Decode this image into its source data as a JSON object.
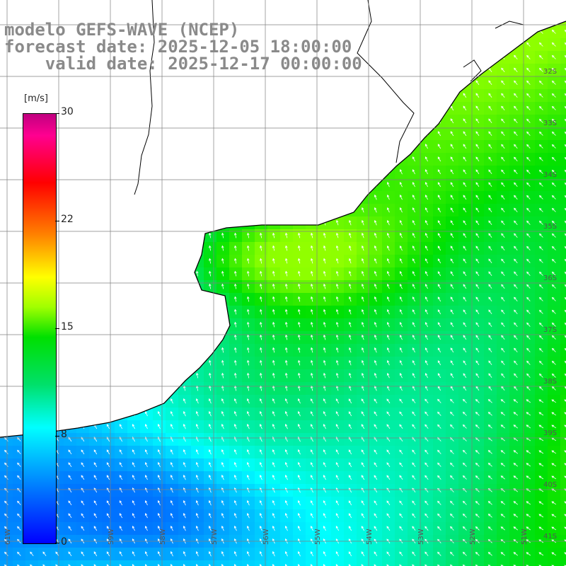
{
  "title": {
    "line1": "modelo GEFS-WAVE (NCEP)",
    "line2": "forecast date: 2025-12-05 18:00:00",
    "line3": "    valid date: 2025-12-17 00:00:00"
  },
  "colorbar": {
    "unit": "[m/s]",
    "ticks": [
      "30",
      "22",
      "15",
      "8",
      "0"
    ],
    "colors": [
      "#0000ff",
      "#00a0ff",
      "#00ffff",
      "#00e000",
      "#ffff00",
      "#ff8000",
      "#ff0000",
      "#c00080"
    ]
  },
  "lat_labels": [
    "32S",
    "33S",
    "34S",
    "35S",
    "36S",
    "37S",
    "38S",
    "39S",
    "40S",
    "41S"
  ],
  "lon_labels": [
    "61W",
    "59W",
    "58W",
    "57W",
    "56W",
    "55W",
    "54W",
    "53W",
    "52W",
    "51W"
  ],
  "colors": {
    "land": "#ffffff",
    "coast": "#000000",
    "grid": "#808080"
  }
}
